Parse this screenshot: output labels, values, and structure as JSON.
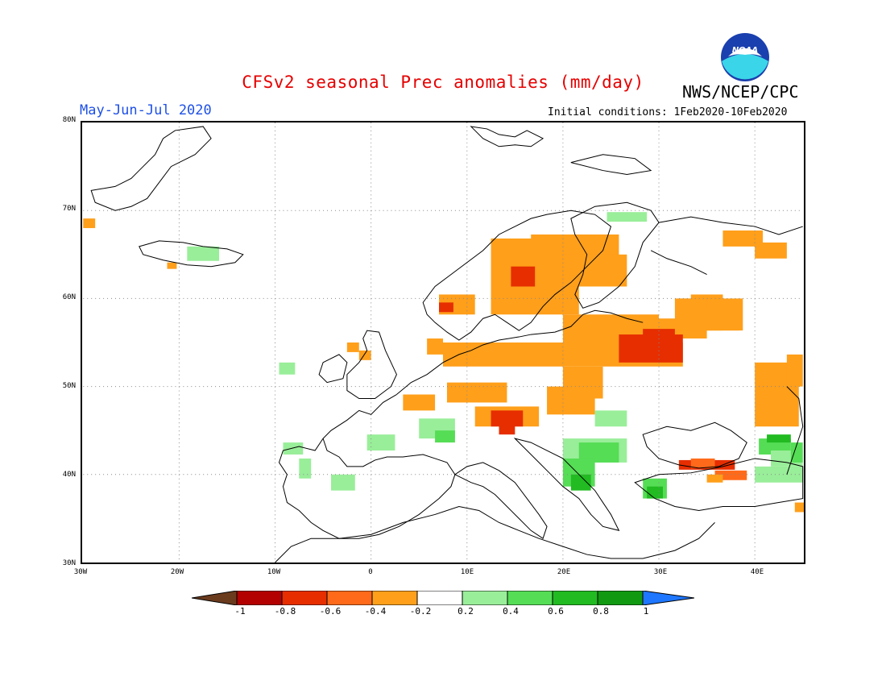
{
  "title": "CFSv2 seasonal Prec anomalies (mm/day)",
  "agency": "NWS/NCEP/CPC",
  "logo_text": "NOAA",
  "period": "May-Jun-Jul 2020",
  "initial_conditions": "Initial conditions: 1Feb2020-10Feb2020",
  "lat_ticks": [
    "80N",
    "70N",
    "60N",
    "50N",
    "40N",
    "30N"
  ],
  "lon_ticks": [
    "30W",
    "20W",
    "10W",
    "0",
    "10E",
    "20E",
    "30E",
    "40E"
  ],
  "colorbar": {
    "labels": [
      "-1",
      "-0.8",
      "-0.6",
      "-0.4",
      "-0.2",
      "0.2",
      "0.4",
      "0.6",
      "0.8",
      "1"
    ],
    "colors": [
      "#6b3b1e",
      "#b30000",
      "#e62e00",
      "#ff6a1a",
      "#ff9f1a",
      "#ffffff",
      "#99ee99",
      "#55dd55",
      "#22bb22",
      "#119911",
      "#1f77ff"
    ]
  },
  "colors": {
    "orange": "#ff9f1a",
    "darkorange": "#ff6a1a",
    "red": "#e62e00",
    "lightgreen": "#99ee99",
    "green": "#55dd55",
    "darkgreen": "#22bb22"
  }
}
